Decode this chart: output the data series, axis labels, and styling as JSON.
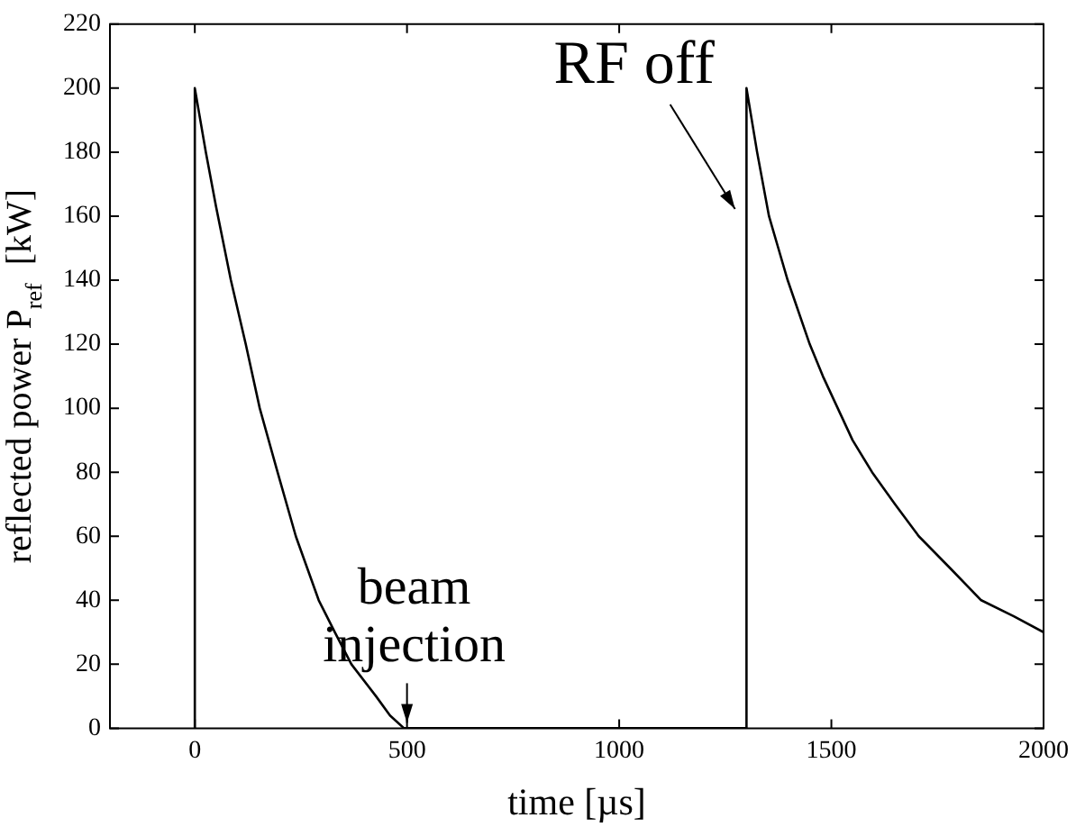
{
  "chart_data": {
    "type": "line",
    "xlabel": "time [µs]",
    "ylabel": "reflected power P$_{ref}$  [kW]",
    "series": [
      {
        "color": "#000000",
        "x": [
          0,
          0,
          26,
          50,
          85,
          120,
          153,
          195,
          238,
          292,
          330,
          369,
          427,
          460,
          493,
          500,
          1300,
          1300,
          1325,
          1353,
          1375,
          1397,
          1449,
          1480,
          1515,
          1550,
          1596,
          1650,
          1706,
          1780,
          1853,
          1930,
          2000
        ],
        "values": [
          0,
          200,
          180,
          163,
          140,
          120,
          100,
          80,
          60,
          40,
          30,
          20,
          10,
          4,
          0,
          0,
          0,
          200,
          180,
          160,
          150,
          140,
          120,
          110,
          100,
          90,
          80,
          70,
          60,
          50,
          40,
          35,
          30
        ]
      }
    ],
    "xlim": [
      -200,
      2000
    ],
    "xticks": [
      0,
      500,
      1000,
      1500,
      2000
    ],
    "ylim": [
      0,
      220
    ],
    "yticks": [
      0,
      20,
      40,
      60,
      80,
      100,
      120,
      140,
      160,
      180,
      200,
      220
    ],
    "grid": false,
    "legend": false,
    "marker": "none",
    "line_style": "solid",
    "annotations": [
      {
        "text": "beam injection",
        "x": 500,
        "y": 0
      },
      {
        "text": "RF off",
        "x": 1290,
        "y": 160
      }
    ]
  }
}
